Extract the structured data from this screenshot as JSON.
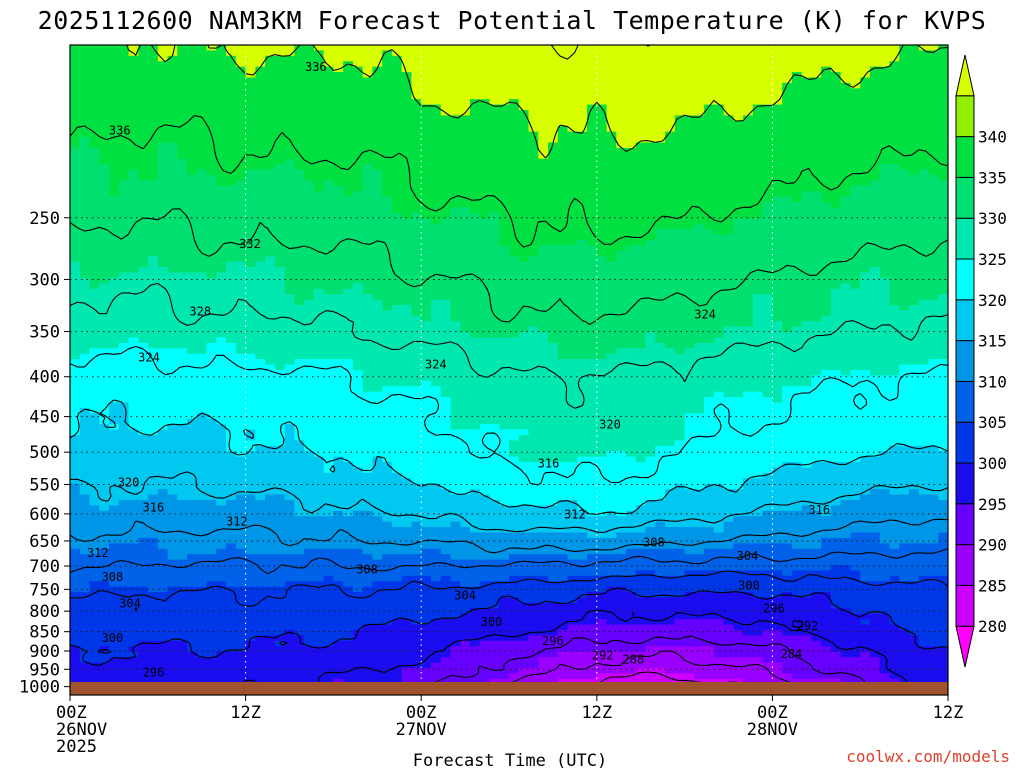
{
  "chart_data": {
    "type": "heatmap",
    "title": "2025112600 NAM3KM Forecast Potential Temperature (K) for KVPS",
    "xlabel": "Forecast Time (UTC)",
    "ylabel": "",
    "x_range_hours": [
      0,
      60
    ],
    "x_ticks": [
      {
        "hour": 0,
        "line1": "00Z",
        "line2": "26NOV",
        "line3": "2025"
      },
      {
        "hour": 12,
        "line1": "12Z",
        "line2": "",
        "line3": ""
      },
      {
        "hour": 24,
        "line1": "00Z",
        "line2": "27NOV",
        "line3": ""
      },
      {
        "hour": 36,
        "line1": "12Z",
        "line2": "",
        "line3": ""
      },
      {
        "hour": 48,
        "line1": "00Z",
        "line2": "28NOV",
        "line3": ""
      },
      {
        "hour": 60,
        "line1": "12Z",
        "line2": "",
        "line3": ""
      }
    ],
    "y_axis": "pressure (hPa), log scale, inverted",
    "y_range": [
      1025,
      150
    ],
    "y_ticks": [
      "250",
      "300",
      "350",
      "400",
      "450",
      "500",
      "550",
      "600",
      "650",
      "700",
      "750",
      "800",
      "850",
      "900",
      "950",
      "1000"
    ],
    "colorbar": {
      "unit": "K",
      "labels": [
        "280",
        "285",
        "290",
        "295",
        "300",
        "305",
        "310",
        "315",
        "320",
        "325",
        "330",
        "335",
        "340"
      ],
      "colors": [
        "#ff00ff",
        "#cc00ff",
        "#9900ff",
        "#6600ff",
        "#1b0df0",
        "#0037e8",
        "#0062e8",
        "#0096e8",
        "#00c8f0",
        "#00ffff",
        "#00e8b0",
        "#00e070",
        "#00e040",
        "#90f000",
        "#d8ff00"
      ]
    },
    "contour_interval_K": 4,
    "contour_labels": [
      {
        "text": "336",
        "hour": 16.8,
        "p": 160
      },
      {
        "text": "336",
        "hour": 3.4,
        "p": 193
      },
      {
        "text": "332",
        "hour": 12.3,
        "p": 270
      },
      {
        "text": "328",
        "hour": 8.9,
        "p": 330
      },
      {
        "text": "324",
        "hour": 5.4,
        "p": 378
      },
      {
        "text": "324",
        "hour": 25.0,
        "p": 386
      },
      {
        "text": "324",
        "hour": 43.4,
        "p": 333
      },
      {
        "text": "320",
        "hour": 36.9,
        "p": 461
      },
      {
        "text": "320",
        "hour": 4.0,
        "p": 547
      },
      {
        "text": "316",
        "hour": 32.7,
        "p": 517
      },
      {
        "text": "316",
        "hour": 5.7,
        "p": 589
      },
      {
        "text": "316",
        "hour": 51.2,
        "p": 593
      },
      {
        "text": "312",
        "hour": 11.4,
        "p": 614
      },
      {
        "text": "312",
        "hour": 34.5,
        "p": 601
      },
      {
        "text": "312",
        "hour": 1.9,
        "p": 674
      },
      {
        "text": "308",
        "hour": 39.9,
        "p": 653
      },
      {
        "text": "308",
        "hour": 20.3,
        "p": 707
      },
      {
        "text": "308",
        "hour": 2.9,
        "p": 723
      },
      {
        "text": "304",
        "hour": 46.3,
        "p": 680
      },
      {
        "text": "304",
        "hour": 27.0,
        "p": 764
      },
      {
        "text": "304",
        "hour": 4.1,
        "p": 782
      },
      {
        "text": "300",
        "hour": 46.4,
        "p": 742
      },
      {
        "text": "300",
        "hour": 28.8,
        "p": 826
      },
      {
        "text": "300",
        "hour": 2.9,
        "p": 866
      },
      {
        "text": "296",
        "hour": 48.1,
        "p": 794
      },
      {
        "text": "296",
        "hour": 33.0,
        "p": 874
      },
      {
        "text": "296",
        "hour": 5.7,
        "p": 959
      },
      {
        "text": "292",
        "hour": 50.4,
        "p": 836
      },
      {
        "text": "292",
        "hour": 36.4,
        "p": 912
      },
      {
        "text": "288",
        "hour": 38.5,
        "p": 923
      },
      {
        "text": "284",
        "hour": 49.3,
        "p": 908
      }
    ]
  },
  "credit": "coolwx.com/models"
}
